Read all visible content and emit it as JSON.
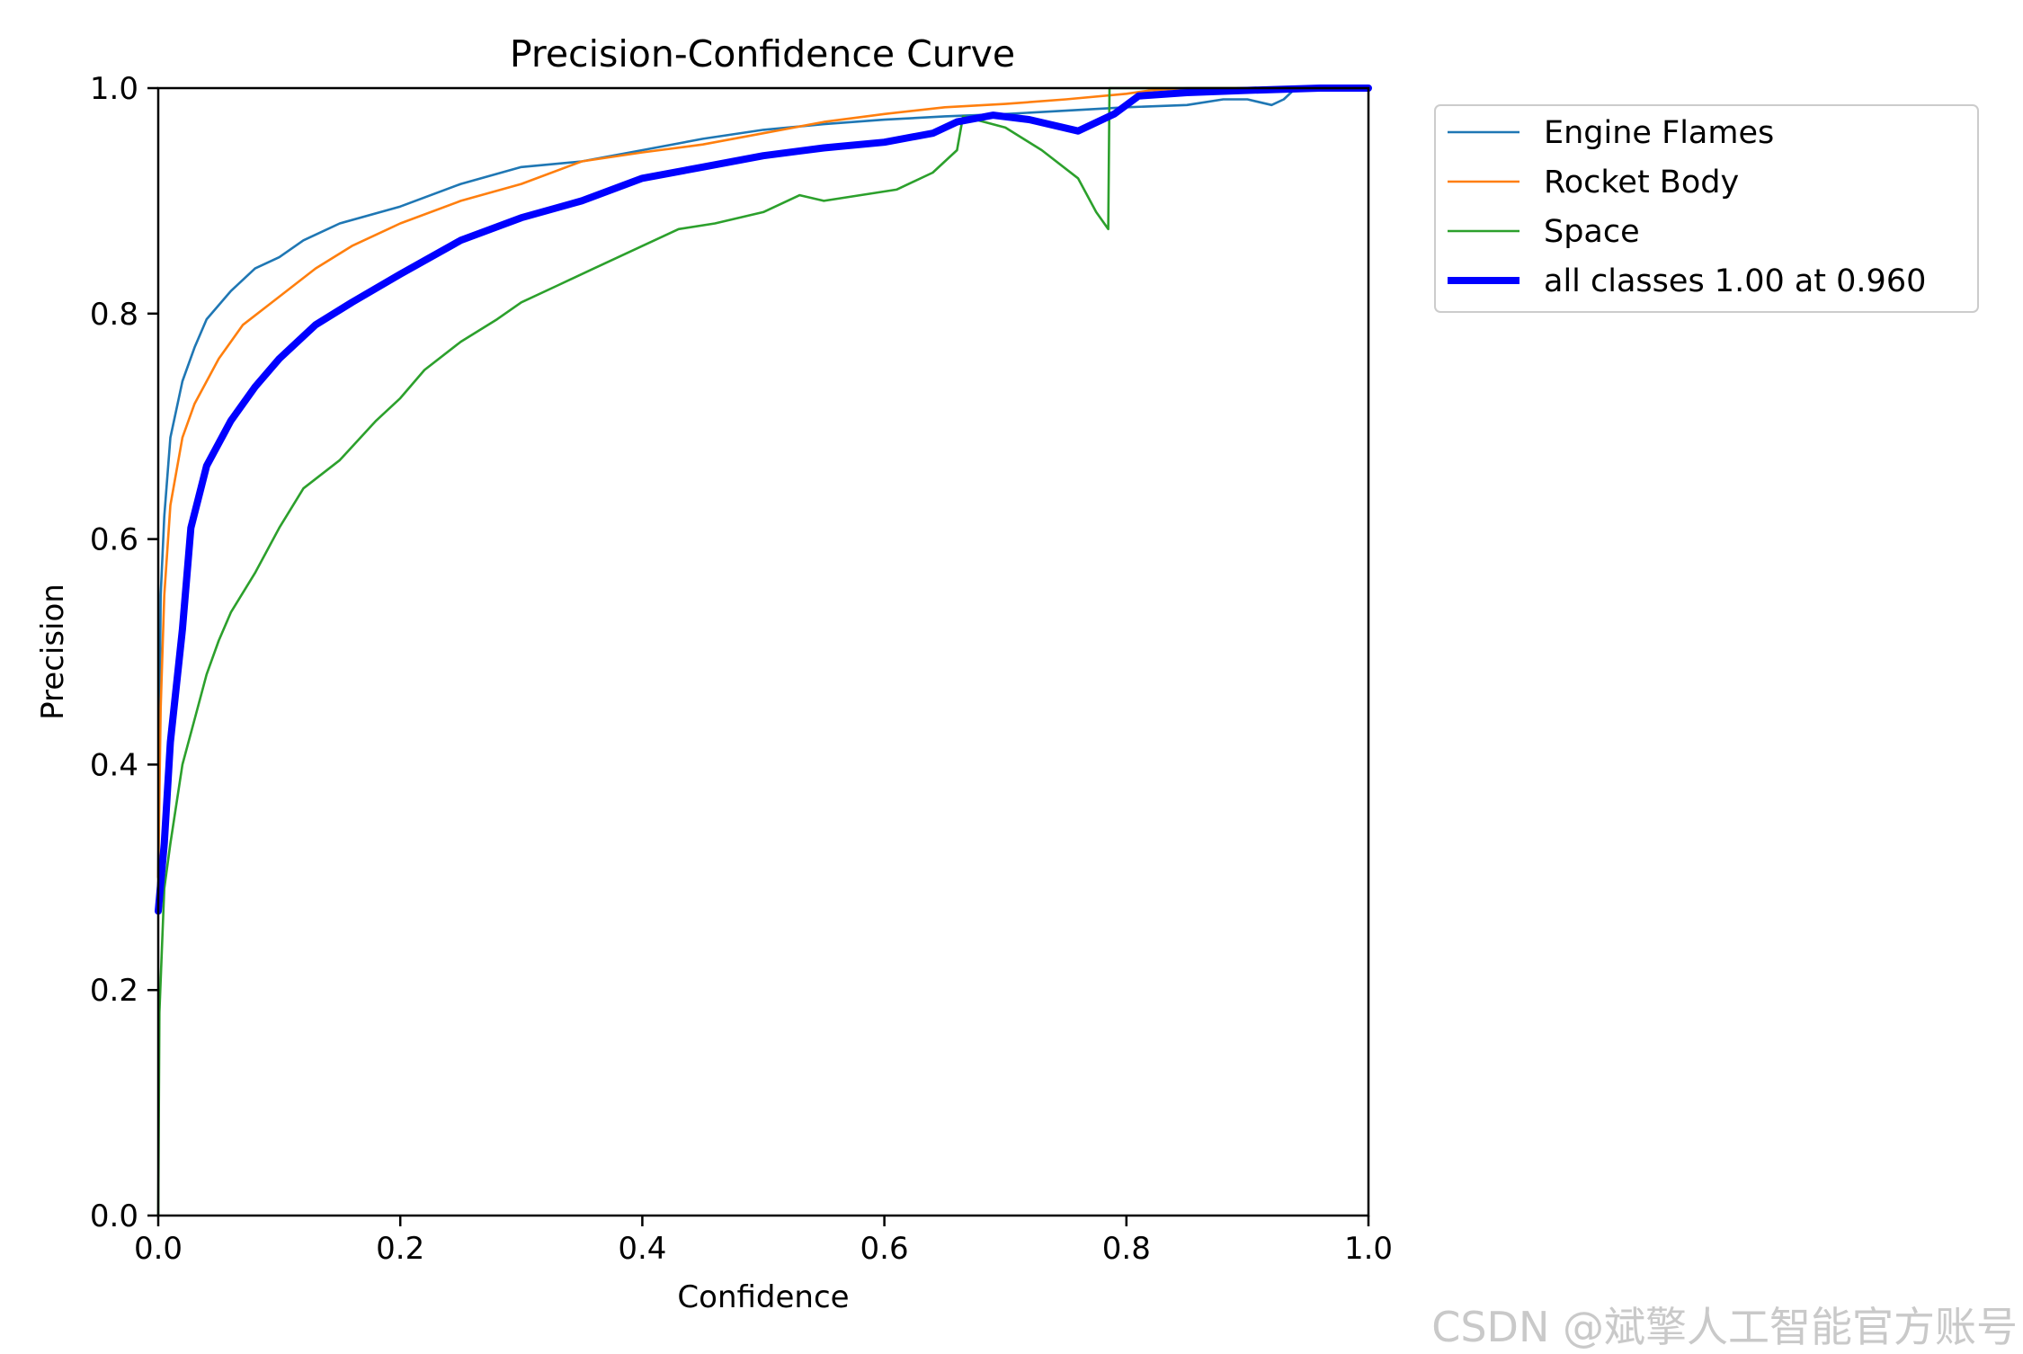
{
  "chart_data": {
    "type": "line",
    "title": "Precision-Confidence Curve",
    "xlabel": "Confidence",
    "ylabel": "Precision",
    "xlim": [
      0.0,
      1.0
    ],
    "ylim": [
      0.0,
      1.0
    ],
    "xticks": [
      "0.0",
      "0.2",
      "0.4",
      "0.6",
      "0.8",
      "1.0"
    ],
    "yticks": [
      "0.0",
      "0.2",
      "0.4",
      "0.6",
      "0.8",
      "1.0"
    ],
    "legend_position": "outside-top-right",
    "series": [
      {
        "name": "Engine Flames",
        "color": "#1f77b4",
        "width": "thin",
        "points": [
          [
            0.0,
            0.3
          ],
          [
            0.002,
            0.55
          ],
          [
            0.005,
            0.62
          ],
          [
            0.01,
            0.69
          ],
          [
            0.02,
            0.74
          ],
          [
            0.03,
            0.77
          ],
          [
            0.04,
            0.795
          ],
          [
            0.06,
            0.82
          ],
          [
            0.08,
            0.84
          ],
          [
            0.1,
            0.85
          ],
          [
            0.12,
            0.865
          ],
          [
            0.15,
            0.88
          ],
          [
            0.2,
            0.895
          ],
          [
            0.25,
            0.915
          ],
          [
            0.3,
            0.93
          ],
          [
            0.35,
            0.935
          ],
          [
            0.4,
            0.945
          ],
          [
            0.45,
            0.955
          ],
          [
            0.5,
            0.963
          ],
          [
            0.55,
            0.968
          ],
          [
            0.6,
            0.972
          ],
          [
            0.65,
            0.975
          ],
          [
            0.7,
            0.977
          ],
          [
            0.75,
            0.98
          ],
          [
            0.8,
            0.983
          ],
          [
            0.85,
            0.985
          ],
          [
            0.88,
            0.99
          ],
          [
            0.9,
            0.99
          ],
          [
            0.92,
            0.985
          ],
          [
            0.93,
            0.99
          ],
          [
            0.94,
            1.0
          ],
          [
            1.0,
            1.0
          ]
        ]
      },
      {
        "name": "Rocket Body",
        "color": "#ff7f0e",
        "width": "thin",
        "points": [
          [
            0.0,
            0.3
          ],
          [
            0.002,
            0.45
          ],
          [
            0.005,
            0.55
          ],
          [
            0.01,
            0.63
          ],
          [
            0.02,
            0.69
          ],
          [
            0.03,
            0.72
          ],
          [
            0.05,
            0.76
          ],
          [
            0.07,
            0.79
          ],
          [
            0.1,
            0.815
          ],
          [
            0.13,
            0.84
          ],
          [
            0.16,
            0.86
          ],
          [
            0.2,
            0.88
          ],
          [
            0.25,
            0.9
          ],
          [
            0.3,
            0.915
          ],
          [
            0.35,
            0.935
          ],
          [
            0.4,
            0.943
          ],
          [
            0.45,
            0.95
          ],
          [
            0.5,
            0.96
          ],
          [
            0.55,
            0.97
          ],
          [
            0.6,
            0.977
          ],
          [
            0.65,
            0.983
          ],
          [
            0.7,
            0.986
          ],
          [
            0.75,
            0.99
          ],
          [
            0.8,
            0.995
          ],
          [
            0.82,
            0.998
          ],
          [
            0.85,
            1.0
          ],
          [
            1.0,
            1.0
          ]
        ]
      },
      {
        "name": "Space",
        "color": "#2ca02c",
        "width": "thin",
        "points": [
          [
            0.0,
            0.0
          ],
          [
            0.001,
            0.18
          ],
          [
            0.005,
            0.29
          ],
          [
            0.01,
            0.33
          ],
          [
            0.02,
            0.4
          ],
          [
            0.03,
            0.44
          ],
          [
            0.04,
            0.48
          ],
          [
            0.05,
            0.51
          ],
          [
            0.06,
            0.535
          ],
          [
            0.08,
            0.57
          ],
          [
            0.1,
            0.61
          ],
          [
            0.12,
            0.645
          ],
          [
            0.15,
            0.67
          ],
          [
            0.18,
            0.705
          ],
          [
            0.2,
            0.725
          ],
          [
            0.22,
            0.75
          ],
          [
            0.25,
            0.775
          ],
          [
            0.28,
            0.795
          ],
          [
            0.3,
            0.81
          ],
          [
            0.33,
            0.825
          ],
          [
            0.36,
            0.84
          ],
          [
            0.4,
            0.86
          ],
          [
            0.43,
            0.875
          ],
          [
            0.46,
            0.88
          ],
          [
            0.5,
            0.89
          ],
          [
            0.53,
            0.905
          ],
          [
            0.55,
            0.9
          ],
          [
            0.58,
            0.905
          ],
          [
            0.61,
            0.91
          ],
          [
            0.64,
            0.925
          ],
          [
            0.66,
            0.945
          ],
          [
            0.665,
            0.975
          ],
          [
            0.7,
            0.965
          ],
          [
            0.73,
            0.945
          ],
          [
            0.76,
            0.92
          ],
          [
            0.775,
            0.89
          ],
          [
            0.785,
            0.875
          ],
          [
            0.786,
            1.0
          ],
          [
            1.0,
            1.0
          ]
        ]
      },
      {
        "name": "all classes 1.00 at 0.960",
        "color": "#0000ff",
        "width": "thick",
        "points": [
          [
            0.0,
            0.27
          ],
          [
            0.005,
            0.33
          ],
          [
            0.01,
            0.42
          ],
          [
            0.02,
            0.52
          ],
          [
            0.027,
            0.61
          ],
          [
            0.04,
            0.665
          ],
          [
            0.06,
            0.705
          ],
          [
            0.08,
            0.735
          ],
          [
            0.1,
            0.76
          ],
          [
            0.13,
            0.79
          ],
          [
            0.16,
            0.81
          ],
          [
            0.2,
            0.835
          ],
          [
            0.25,
            0.865
          ],
          [
            0.3,
            0.885
          ],
          [
            0.35,
            0.9
          ],
          [
            0.4,
            0.92
          ],
          [
            0.45,
            0.93
          ],
          [
            0.5,
            0.94
          ],
          [
            0.55,
            0.947
          ],
          [
            0.6,
            0.952
          ],
          [
            0.64,
            0.96
          ],
          [
            0.66,
            0.97
          ],
          [
            0.69,
            0.976
          ],
          [
            0.72,
            0.972
          ],
          [
            0.76,
            0.962
          ],
          [
            0.79,
            0.977
          ],
          [
            0.81,
            0.993
          ],
          [
            0.85,
            0.996
          ],
          [
            0.9,
            0.998
          ],
          [
            0.96,
            1.0
          ],
          [
            1.0,
            1.0
          ]
        ]
      }
    ],
    "watermark": "CSDN @斌擎人工智能官方账号"
  }
}
